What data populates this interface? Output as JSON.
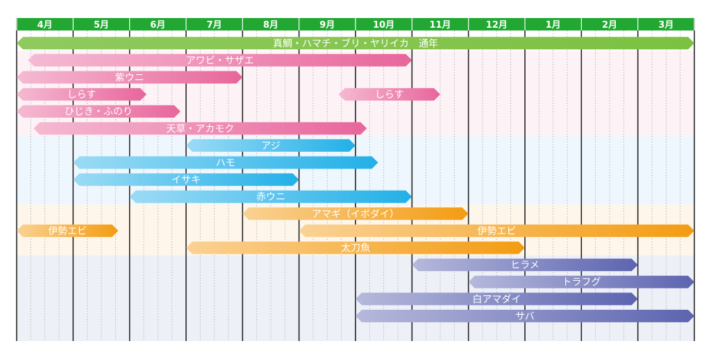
{
  "chart_data": {
    "type": "bar",
    "subtype": "gantt",
    "title": "",
    "xlabel": "",
    "ylabel": "",
    "months": [
      "4月",
      "5月",
      "6月",
      "7月",
      "8月",
      "9月",
      "10月",
      "11月",
      "12月",
      "1月",
      "2月",
      "3月"
    ],
    "x_unit": "month index from April (0 = start of April)",
    "xlim": [
      0,
      12
    ],
    "grid": true,
    "colors": {
      "header": "#22a832",
      "gridline": "#222222",
      "subgrid": "#b8b8b8",
      "green": "#7cc142",
      "pink": "#e8669b",
      "blue": "#22b0e8",
      "orange": "#f39c12",
      "purple": "#5c64b0"
    },
    "groups": [
      {
        "name": "green",
        "band": "#ffffff",
        "rows": [
          0,
          0
        ]
      },
      {
        "name": "pink",
        "band": "#fdf2f6",
        "rows": [
          1,
          5
        ]
      },
      {
        "name": "blue",
        "band": "#edf7fd",
        "rows": [
          6,
          9
        ]
      },
      {
        "name": "orange",
        "band": "#fef6ea",
        "rows": [
          10,
          12
        ]
      },
      {
        "name": "purple",
        "band": "#eef0f8",
        "rows": [
          13,
          16
        ]
      }
    ],
    "rows": [
      {
        "bars": [
          {
            "label": "真鯛・ハマチ・ブリ・ヤリイカ　通年",
            "start": 0.0,
            "end": 12.0,
            "color": "green"
          }
        ]
      },
      {
        "bars": [
          {
            "label": "アワビ・サザエ",
            "start": 0.2,
            "end": 7.0,
            "color": "pink"
          }
        ]
      },
      {
        "bars": [
          {
            "label": "紫ウニ",
            "start": 0.0,
            "end": 4.0,
            "color": "pink"
          }
        ]
      },
      {
        "bars": [
          {
            "label": "しらす",
            "start": 0.0,
            "end": 2.3,
            "color": "pink"
          },
          {
            "label": "しらす",
            "start": 5.7,
            "end": 7.5,
            "color": "pink"
          }
        ]
      },
      {
        "bars": [
          {
            "label": "ひじき・ふのり",
            "start": 0.0,
            "end": 2.9,
            "color": "pink"
          }
        ]
      },
      {
        "bars": [
          {
            "label": "天草・アカモク",
            "start": 0.3,
            "end": 6.2,
            "color": "pink"
          }
        ]
      },
      {
        "bars": [
          {
            "label": "アジ",
            "start": 3.0,
            "end": 6.0,
            "color": "blue"
          }
        ]
      },
      {
        "bars": [
          {
            "label": "ハモ",
            "start": 1.0,
            "end": 6.4,
            "color": "blue"
          }
        ]
      },
      {
        "bars": [
          {
            "label": "イサキ",
            "start": 1.0,
            "end": 5.0,
            "color": "blue"
          }
        ]
      },
      {
        "bars": [
          {
            "label": "赤ウニ",
            "start": 2.0,
            "end": 7.0,
            "color": "blue"
          }
        ]
      },
      {
        "bars": [
          {
            "label": "アマギ（イボダイ）",
            "start": 4.0,
            "end": 8.0,
            "color": "orange"
          }
        ]
      },
      {
        "bars": [
          {
            "label": "伊勢エビ",
            "start": 0.0,
            "end": 1.8,
            "color": "orange"
          },
          {
            "label": "伊勢エビ",
            "start": 5.0,
            "end": 12.0,
            "color": "orange"
          }
        ]
      },
      {
        "bars": [
          {
            "label": "太刀魚",
            "start": 3.0,
            "end": 9.0,
            "color": "orange"
          }
        ]
      },
      {
        "bars": [
          {
            "label": "ヒラメ",
            "start": 7.0,
            "end": 11.0,
            "color": "purple"
          }
        ]
      },
      {
        "bars": [
          {
            "label": "トラフグ",
            "start": 8.0,
            "end": 12.0,
            "color": "purple"
          }
        ]
      },
      {
        "bars": [
          {
            "label": "白アマダイ",
            "start": 6.0,
            "end": 11.0,
            "color": "purple"
          }
        ]
      },
      {
        "bars": [
          {
            "label": "サバ",
            "start": 6.0,
            "end": 12.0,
            "color": "purple"
          }
        ]
      }
    ]
  }
}
